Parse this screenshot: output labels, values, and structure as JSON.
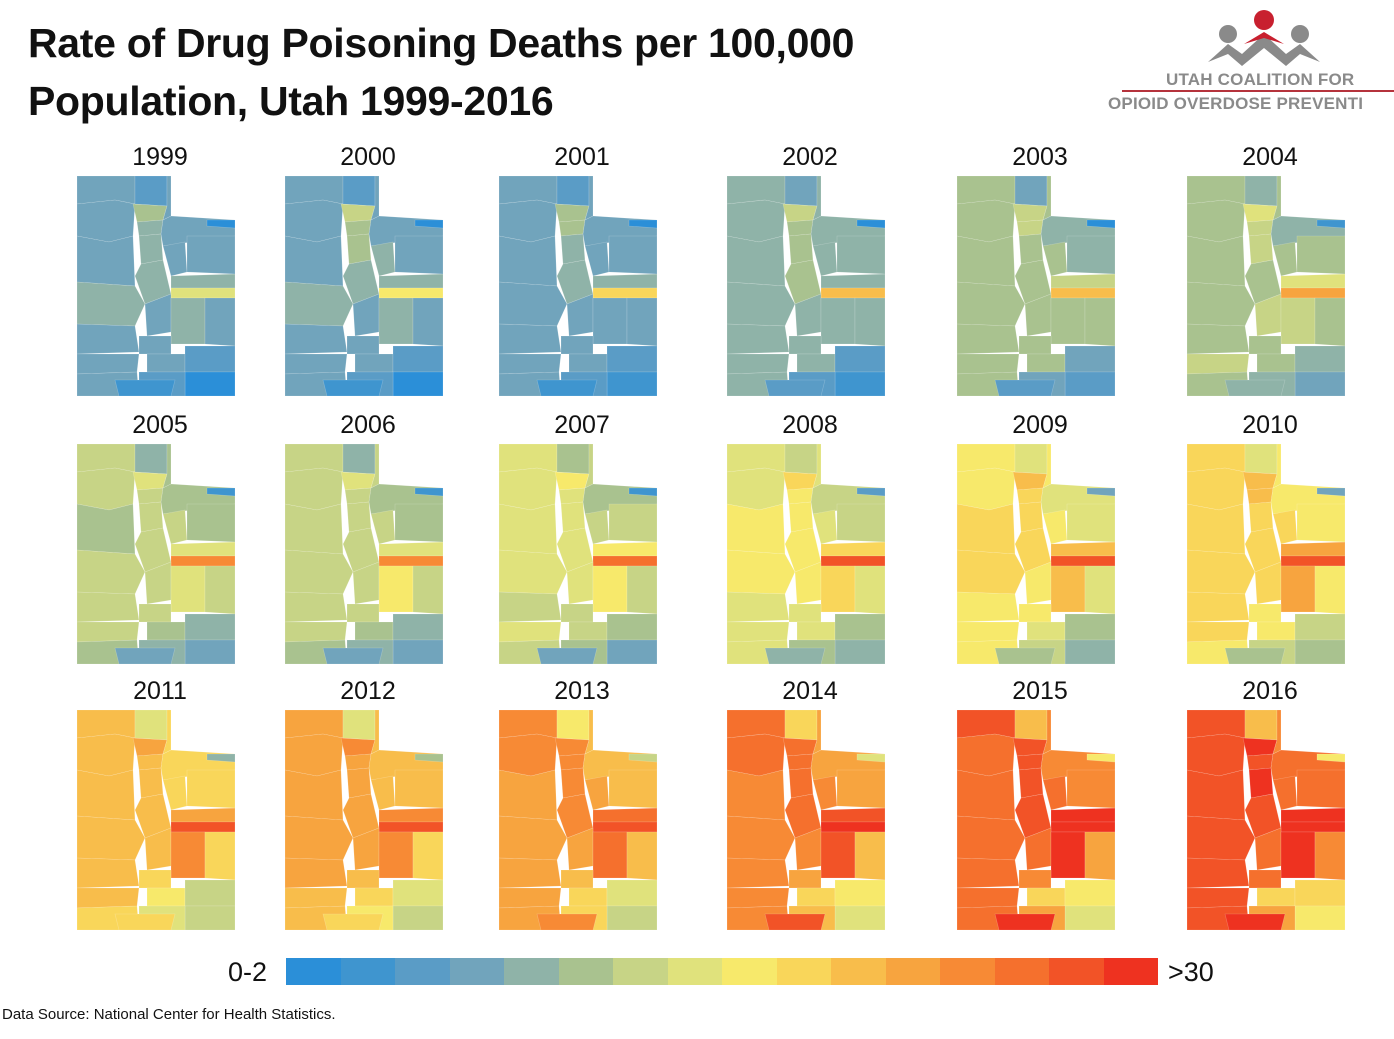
{
  "title": {
    "line1": "Rate of Drug Poisoning Deaths per 100,000",
    "line2": "Population, Utah 1999-2016"
  },
  "logo": {
    "line1": "UTAH COALITION FOR",
    "line2": "OPIOID OVERDOSE PREVENTI",
    "colors": {
      "figures": "#8a8a8a",
      "accent": "#c8202f"
    }
  },
  "legend": {
    "min_label": "0-2",
    "max_label": ">30",
    "colors": [
      "#2b8fd8",
      "#3f95cf",
      "#5a9cc6",
      "#71a4bc",
      "#8fb3a8",
      "#a9c28f",
      "#c7d486",
      "#e0e27c",
      "#f7e96b",
      "#f9d65a",
      "#f8bd4b",
      "#f7a43f",
      "#f78a35",
      "#f5702d",
      "#f25327",
      "#ee3220"
    ]
  },
  "source": "Data Source:  National Center for Health Statistics.",
  "years": [
    "1999",
    "2000",
    "2001",
    "2002",
    "2003",
    "2004",
    "2005",
    "2006",
    "2007",
    "2008",
    "2009",
    "2010",
    "2011",
    "2012",
    "2013",
    "2014",
    "2015",
    "2016"
  ],
  "region_names": [
    "cache",
    "box_elder",
    "rich",
    "weber",
    "davis",
    "morgan",
    "salt_lake",
    "summit",
    "daggett",
    "tooele",
    "utah",
    "wasatch",
    "duchesne",
    "uintah",
    "juab",
    "carbon",
    "millard",
    "sanpete",
    "emery",
    "grand",
    "sevier",
    "beaver",
    "piute_wayne",
    "iron",
    "garfield",
    "san_juan",
    "washington",
    "kane"
  ],
  "chart_data": {
    "type": "choropleth",
    "scale_min_label": "0-2",
    "scale_max_label": ">30",
    "class_count": 16,
    "rate_class_by_year": {
      "1999": [
        3,
        3,
        2,
        5,
        4,
        3,
        4,
        3,
        0,
        3,
        4,
        3,
        4,
        3,
        4,
        7,
        3,
        3,
        4,
        3,
        3,
        3,
        3,
        3,
        2,
        0,
        2,
        1
      ],
      "2000": [
        3,
        3,
        2,
        6,
        5,
        3,
        5,
        3,
        0,
        3,
        4,
        4,
        4,
        3,
        4,
        8,
        3,
        3,
        4,
        3,
        3,
        3,
        3,
        3,
        2,
        0,
        2,
        1
      ],
      "2001": [
        3,
        3,
        2,
        5,
        5,
        3,
        4,
        3,
        0,
        3,
        4,
        3,
        4,
        3,
        3,
        9,
        3,
        3,
        3,
        3,
        3,
        3,
        3,
        3,
        2,
        1,
        2,
        1
      ],
      "2002": [
        4,
        4,
        3,
        6,
        5,
        4,
        5,
        4,
        0,
        4,
        5,
        4,
        4,
        4,
        4,
        10,
        4,
        4,
        4,
        4,
        4,
        4,
        4,
        4,
        2,
        1,
        2,
        2
      ],
      "2003": [
        5,
        5,
        3,
        6,
        6,
        5,
        5,
        4,
        0,
        5,
        5,
        5,
        6,
        4,
        5,
        10,
        5,
        5,
        5,
        5,
        5,
        5,
        5,
        5,
        3,
        2,
        3,
        2
      ],
      "2004": [
        5,
        5,
        4,
        7,
        6,
        5,
        6,
        4,
        1,
        5,
        5,
        5,
        7,
        5,
        5,
        11,
        5,
        6,
        6,
        5,
        5,
        6,
        5,
        5,
        4,
        3,
        4,
        4
      ],
      "2005": [
        6,
        6,
        4,
        7,
        6,
        5,
        6,
        5,
        1,
        5,
        6,
        6,
        7,
        5,
        6,
        12,
        6,
        6,
        7,
        6,
        6,
        6,
        5,
        5,
        4,
        3,
        4,
        3
      ],
      "2006": [
        6,
        6,
        4,
        7,
        6,
        6,
        6,
        5,
        1,
        6,
        6,
        6,
        7,
        5,
        6,
        12,
        6,
        6,
        8,
        6,
        6,
        6,
        5,
        5,
        4,
        3,
        4,
        3
      ],
      "2007": [
        7,
        7,
        5,
        8,
        7,
        6,
        7,
        5,
        1,
        7,
        7,
        6,
        8,
        6,
        7,
        13,
        6,
        7,
        8,
        6,
        6,
        7,
        6,
        6,
        5,
        3,
        5,
        3
      ],
      "2008": [
        7,
        7,
        6,
        9,
        8,
        7,
        8,
        6,
        2,
        8,
        8,
        7,
        9,
        6,
        8,
        14,
        7,
        8,
        9,
        7,
        7,
        7,
        7,
        7,
        5,
        4,
        5,
        4
      ],
      "2009": [
        8,
        8,
        7,
        10,
        9,
        8,
        9,
        7,
        3,
        9,
        9,
        8,
        10,
        7,
        9,
        14,
        8,
        8,
        10,
        7,
        8,
        8,
        7,
        8,
        5,
        4,
        6,
        5
      ],
      "2010": [
        9,
        9,
        7,
        10,
        10,
        8,
        9,
        8,
        3,
        9,
        9,
        9,
        11,
        8,
        9,
        14,
        9,
        9,
        11,
        8,
        8,
        9,
        8,
        8,
        6,
        5,
        6,
        5
      ],
      "2011": [
        10,
        10,
        7,
        11,
        10,
        9,
        10,
        9,
        4,
        10,
        10,
        9,
        11,
        9,
        10,
        14,
        10,
        10,
        12,
        9,
        9,
        10,
        8,
        9,
        6,
        6,
        7,
        9
      ],
      "2012": [
        11,
        11,
        7,
        12,
        11,
        10,
        11,
        10,
        5,
        11,
        11,
        10,
        12,
        10,
        11,
        14,
        11,
        11,
        12,
        9,
        10,
        10,
        9,
        10,
        7,
        6,
        8,
        9
      ],
      "2013": [
        12,
        12,
        8,
        12,
        12,
        10,
        12,
        10,
        6,
        11,
        12,
        11,
        13,
        10,
        11,
        14,
        11,
        11,
        13,
        10,
        10,
        11,
        9,
        11,
        7,
        6,
        9,
        12
      ],
      "2014": [
        13,
        13,
        9,
        13,
        13,
        11,
        13,
        11,
        7,
        12,
        13,
        12,
        14,
        11,
        12,
        15,
        12,
        12,
        14,
        10,
        11,
        12,
        9,
        12,
        8,
        7,
        10,
        14
      ],
      "2015": [
        14,
        13,
        10,
        14,
        14,
        12,
        14,
        12,
        8,
        13,
        14,
        13,
        15,
        12,
        13,
        15,
        13,
        13,
        15,
        11,
        12,
        13,
        9,
        13,
        8,
        7,
        11,
        15
      ],
      "2016": [
        14,
        14,
        10,
        15,
        14,
        12,
        15,
        13,
        8,
        14,
        14,
        13,
        15,
        13,
        14,
        15,
        14,
        13,
        15,
        12,
        13,
        14,
        9,
        14,
        9,
        8,
        11,
        15
      ]
    }
  }
}
